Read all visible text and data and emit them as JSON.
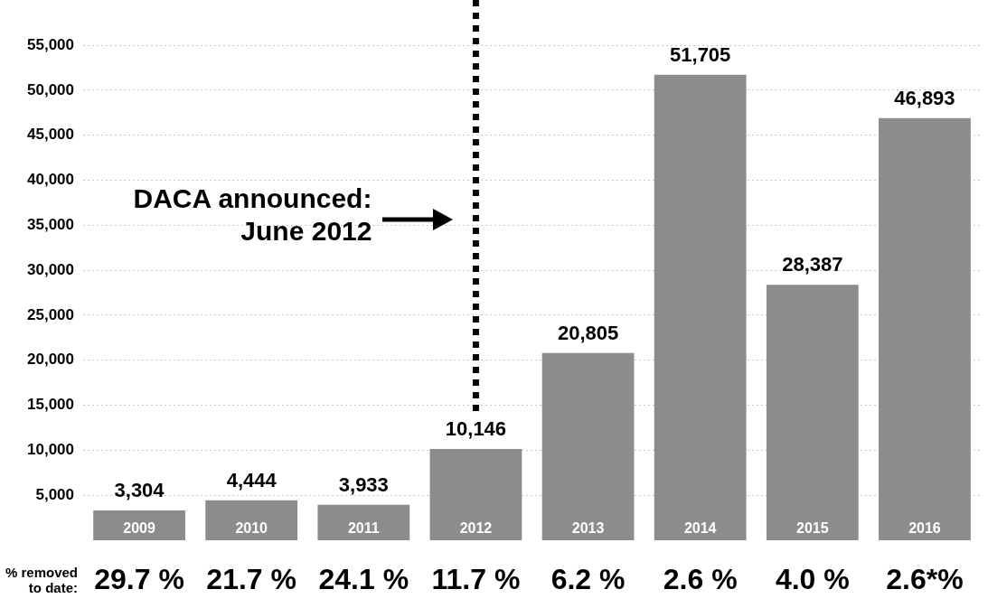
{
  "chart_data": {
    "type": "bar",
    "categories": [
      "2009",
      "2010",
      "2011",
      "2012",
      "2013",
      "2014",
      "2015",
      "2016"
    ],
    "values": [
      3304,
      4444,
      3933,
      10146,
      20805,
      51705,
      28387,
      46893
    ],
    "color": "#8c8c8c",
    "value_labels": [
      "3,304",
      "4,444",
      "3,933",
      "10,146",
      "20,805",
      "51,705",
      "28,387",
      "46,893"
    ],
    "ylim": [
      0,
      55000
    ],
    "yticks": [
      {
        "value": 5000,
        "label": "5,000"
      },
      {
        "value": 10000,
        "label": "10,000"
      },
      {
        "value": 15000,
        "label": "15,000"
      },
      {
        "value": 20000,
        "label": "20,000"
      },
      {
        "value": 25000,
        "label": "25,000"
      },
      {
        "value": 30000,
        "label": "30,000"
      },
      {
        "value": 35000,
        "label": "35,000"
      },
      {
        "value": 40000,
        "label": "40,000"
      },
      {
        "value": 45000,
        "label": "45,000"
      },
      {
        "value": 50000,
        "label": "50,000"
      },
      {
        "value": 55000,
        "label": "55,000"
      }
    ],
    "grid": "y",
    "ref_lines": [
      {
        "axis": "x",
        "value": "2012",
        "label": "DACA announced:\nJune 2012",
        "line_style": "dotted",
        "color": "#000000"
      }
    ],
    "annotations": [
      "% removed\nto date:",
      "29.7 %",
      "21.7 %",
      "24.1 %",
      "11.7 %",
      "6.2 %",
      "2.6 %",
      "4.0 %",
      "2.6*%"
    ]
  }
}
